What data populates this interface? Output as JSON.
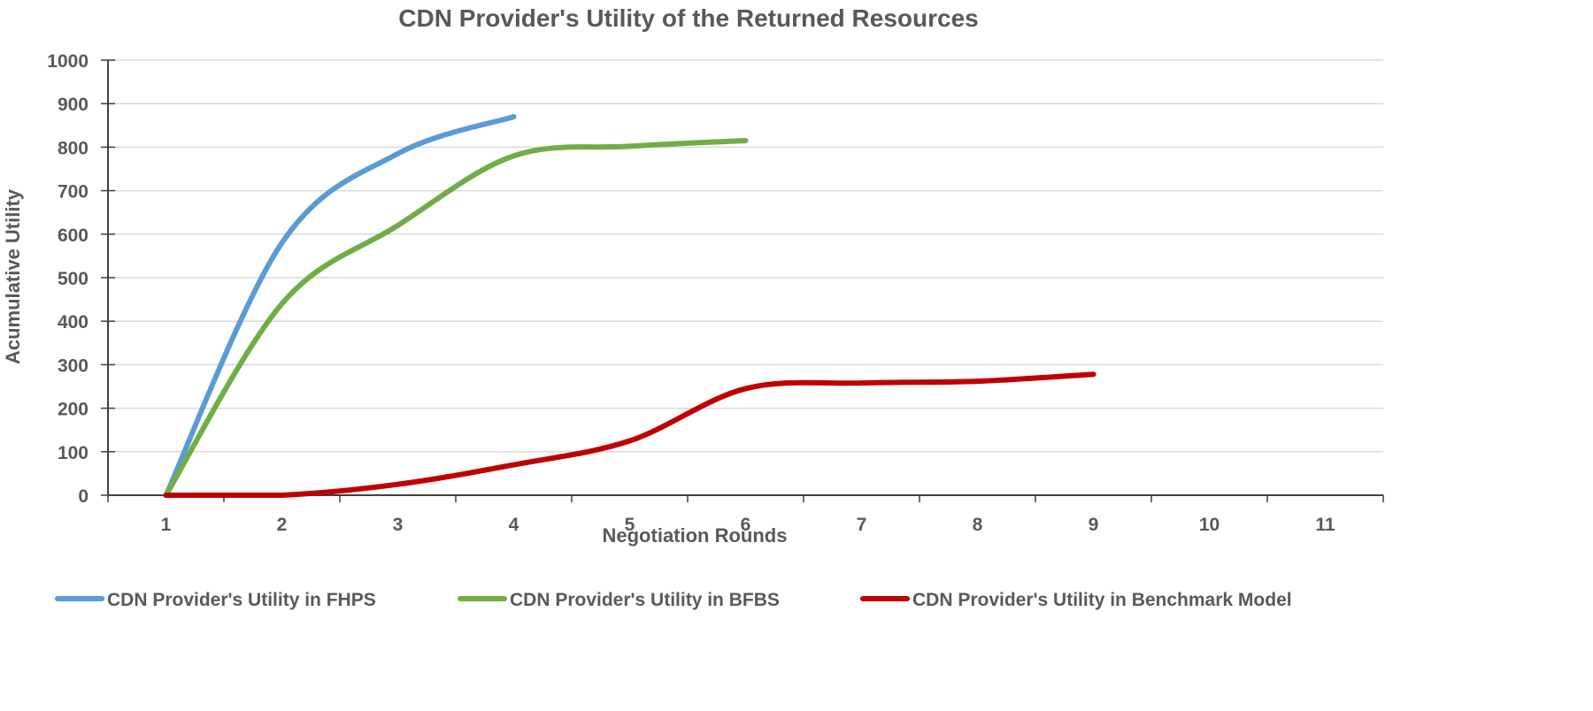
{
  "chart_data": {
    "type": "line",
    "title": "CDN Provider's Utility of the Returned Resources",
    "xlabel": "Negotiation Rounds",
    "ylabel": "Acumulative Utility",
    "categories": [
      "1",
      "2",
      "3",
      "4",
      "5",
      "6",
      "7",
      "8",
      "9",
      "10",
      "11"
    ],
    "ylim": [
      0,
      1000
    ],
    "yticks": [
      "0",
      "100",
      "200",
      "300",
      "400",
      "500",
      "600",
      "700",
      "800",
      "900",
      "1000"
    ],
    "grid": true,
    "legend_position": "bottom",
    "series": [
      {
        "name": "CDN Provider's Utility in FHPS",
        "color": "#5b9bd5",
        "x": [
          1,
          2,
          3,
          4
        ],
        "values": [
          0,
          580,
          785,
          870
        ]
      },
      {
        "name": "CDN Provider's Utility in BFBS",
        "color": "#70ad47",
        "x": [
          1,
          2,
          3,
          4,
          5,
          6
        ],
        "values": [
          0,
          440,
          620,
          780,
          802,
          815
        ]
      },
      {
        "name": "CDN Provider's Utility in Benchmark Model",
        "color": "#c00000",
        "x": [
          1,
          2,
          3,
          4,
          5,
          6,
          7,
          8,
          9
        ],
        "values": [
          0,
          0,
          25,
          70,
          125,
          245,
          258,
          262,
          278
        ]
      }
    ]
  }
}
